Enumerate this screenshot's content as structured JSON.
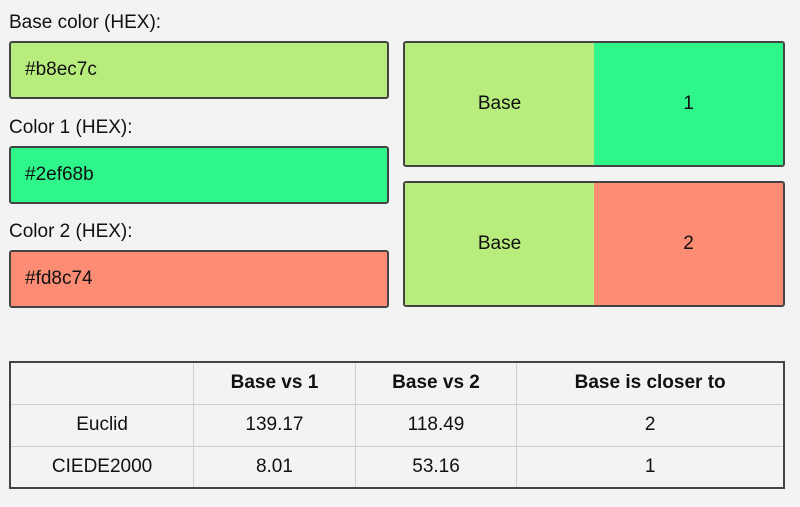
{
  "inputs": {
    "base": {
      "label": "Base color (HEX):",
      "value": "#b8ec7c",
      "color": "#b8ec7c"
    },
    "color1": {
      "label": "Color 1 (HEX):",
      "value": "#2ef68b",
      "color": "#2ef68b"
    },
    "color2": {
      "label": "Color 2 (HEX):",
      "value": "#fd8c74",
      "color": "#fd8c74"
    }
  },
  "swatches": {
    "pair1": {
      "base_label": "Base",
      "other_label": "1",
      "base_color": "#b8ec7c",
      "other_color": "#2ef68b"
    },
    "pair2": {
      "base_label": "Base",
      "other_label": "2",
      "base_color": "#b8ec7c",
      "other_color": "#fd8c74"
    }
  },
  "table": {
    "headers": [
      "",
      "Base vs 1",
      "Base vs 2",
      "Base is closer to"
    ],
    "rows": [
      [
        "Euclid",
        "139.17",
        "118.49",
        "2"
      ],
      [
        "CIEDE2000",
        "8.01",
        "53.16",
        "1"
      ]
    ]
  }
}
